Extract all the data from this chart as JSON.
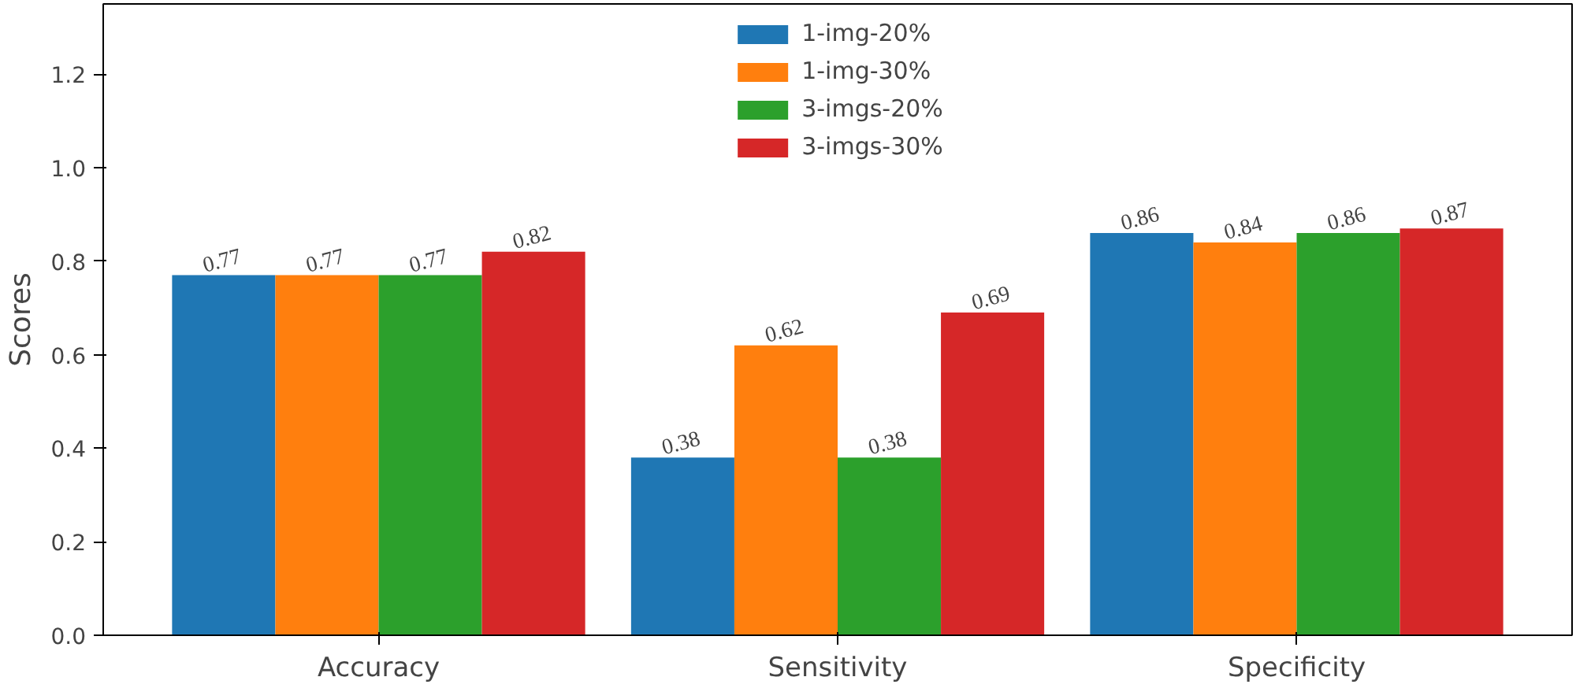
{
  "chart_data": {
    "type": "bar",
    "ylabel": "Scores",
    "categories": [
      "Accuracy",
      "Sensitivity",
      "Specificity"
    ],
    "series": [
      {
        "name": "1-img-20%",
        "color": "#1f77b4",
        "values": [
          0.77,
          0.38,
          0.86
        ]
      },
      {
        "name": "1-img-30%",
        "color": "#ff7f0e",
        "values": [
          0.77,
          0.62,
          0.84
        ]
      },
      {
        "name": "3-imgs-20%",
        "color": "#2ca02c",
        "values": [
          0.77,
          0.38,
          0.86
        ]
      },
      {
        "name": "3-imgs-30%",
        "color": "#d62728",
        "values": [
          0.82,
          0.69,
          0.87
        ]
      }
    ],
    "ylim": [
      0,
      1.35
    ],
    "yticks": [
      {
        "value": 0,
        "label": "0.0"
      },
      {
        "value": 0.2,
        "label": "0.2"
      },
      {
        "value": 0.4,
        "label": "0.4"
      },
      {
        "value": 0.6,
        "label": "0.6"
      },
      {
        "value": 0.8,
        "label": "0.8"
      },
      {
        "value": 1.0,
        "label": "1.0"
      },
      {
        "value": 1.2,
        "label": "1.2"
      }
    ],
    "data_labels": true,
    "legend": "top",
    "grid": false
  }
}
